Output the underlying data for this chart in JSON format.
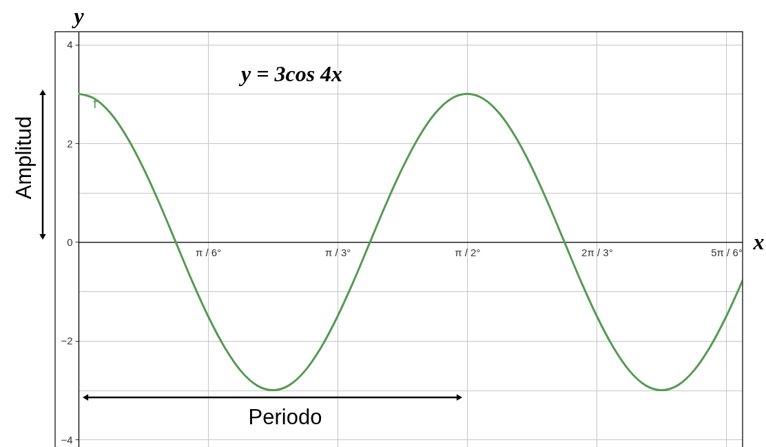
{
  "chart_data": {
    "type": "line",
    "title": "y = 3cos 4x",
    "xlabel": "x",
    "ylabel": "y",
    "categories": [
      null,
      null,
      null,
      null,
      null,
      null,
      null,
      null,
      "π / 6°",
      null,
      null,
      null,
      null,
      null,
      null,
      null,
      "π / 3°",
      null,
      null,
      null,
      null,
      null,
      null,
      null,
      "π / 2°",
      null,
      null,
      null,
      null,
      null,
      null,
      null,
      "2π / 3°",
      null,
      null,
      null,
      null,
      null,
      null,
      null,
      "5π / 6°",
      null
    ],
    "series": [
      {
        "name": "f",
        "color": "#559a52",
        "values": [
          3,
          2.9,
          2.6,
          2.12,
          1.5,
          0.78,
          0,
          -0.78,
          -1.5,
          -2.12,
          -2.6,
          -2.9,
          -3,
          -2.9,
          -2.6,
          -2.12,
          -1.5,
          -0.78,
          0,
          0.78,
          1.5,
          2.12,
          2.6,
          2.9,
          3,
          2.9,
          2.6,
          2.12,
          1.5,
          0.78,
          0,
          -0.78,
          -1.5,
          -2.12,
          -2.6,
          -2.9,
          -3,
          -2.9,
          -2.6,
          -2.12,
          -1.5,
          -0.78
        ]
      }
    ],
    "ylim": [
      -4.15,
      4.26
    ],
    "yticks": [
      {
        "value": -4,
        "label": "−4"
      },
      {
        "value": -3,
        "label": null
      },
      {
        "value": -2,
        "label": "−2"
      },
      {
        "value": -1,
        "label": null
      },
      0,
      {
        "value": 1,
        "label": null
      },
      2,
      {
        "value": 3,
        "label": null
      },
      4
    ],
    "grid": true,
    "line_style": "solid",
    "annotations": [
      "Periodo",
      "Amplitud"
    ]
  }
}
